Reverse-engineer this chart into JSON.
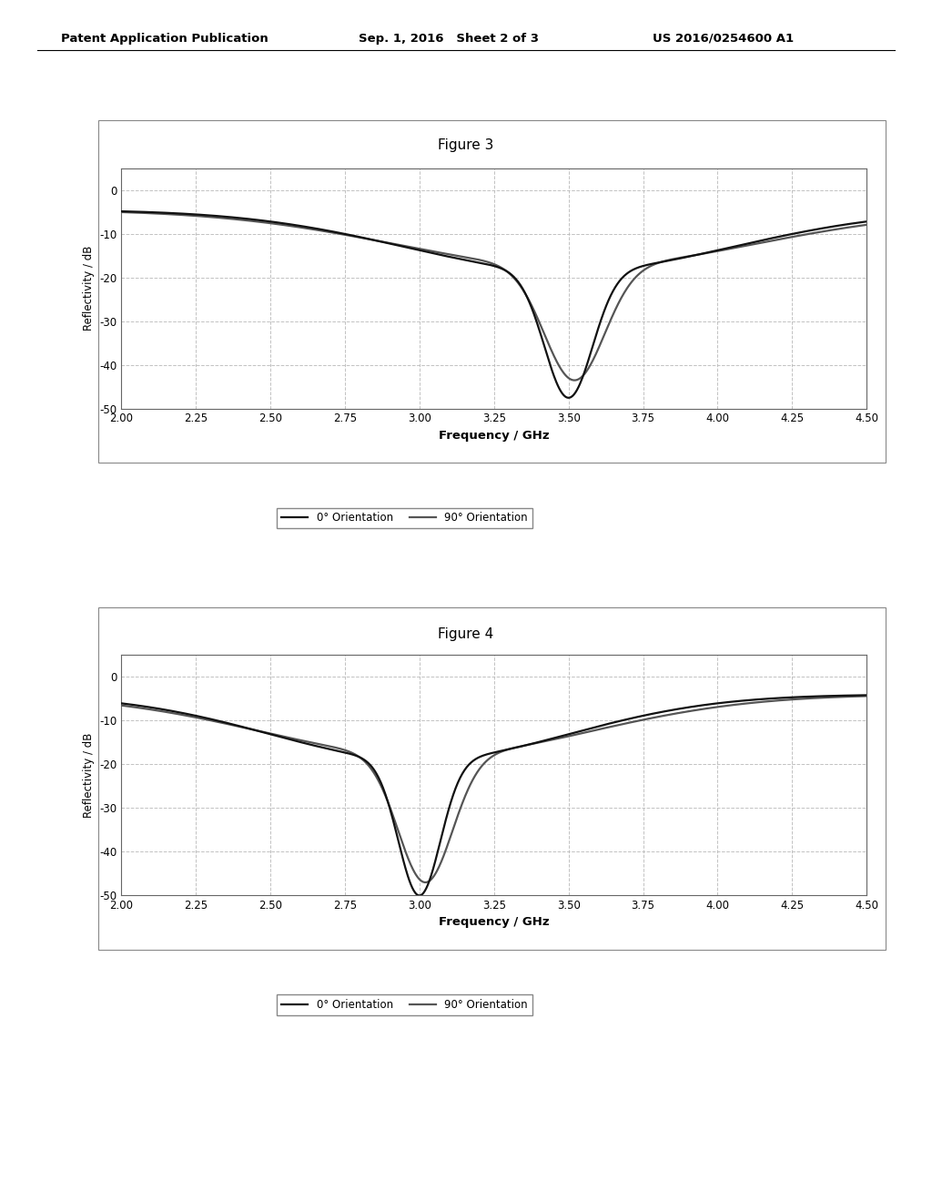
{
  "page_title_left": "Patent Application Publication",
  "page_title_center": "Sep. 1, 2016   Sheet 2 of 3",
  "page_title_right": "US 2016/0254600 A1",
  "fig3_title": "Figure 3",
  "fig4_title": "Figure 4",
  "xlabel": "Frequency / GHz",
  "ylabel": "Reflectivity / dB",
  "xlim": [
    2.0,
    4.5
  ],
  "ylim": [
    -50,
    5
  ],
  "xticks": [
    2.0,
    2.25,
    2.5,
    2.75,
    3.0,
    3.25,
    3.5,
    3.75,
    4.0,
    4.25,
    4.5
  ],
  "yticks": [
    0,
    -10,
    -20,
    -30,
    -40,
    -50
  ],
  "legend_entries": [
    "0° Orientation",
    "90° Orientation"
  ],
  "line_color_0": "#111111",
  "line_color_90": "#555555",
  "line_width": 1.6,
  "background_color": "#ffffff",
  "grid_color": "#bbbbbb",
  "grid_style": "--",
  "grid_alpha": 0.9
}
